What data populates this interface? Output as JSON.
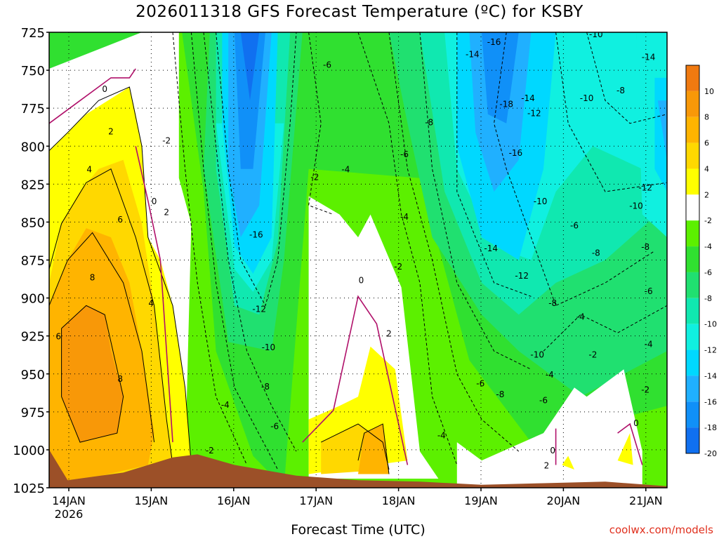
{
  "chart_data": {
    "type": "heatmap",
    "title": "2026011318 GFS Forecast Temperature (ºC) for KSBY",
    "xlabel": "Forecast Time (UTC)",
    "ylabel": "",
    "credit": "coolwx.com/models",
    "x_ticks": [
      "14JAN",
      "15JAN",
      "16JAN",
      "17JAN",
      "18JAN",
      "19JAN",
      "20JAN",
      "21JAN"
    ],
    "x_year_label": "2026",
    "y_ticks": [
      "725",
      "750",
      "775",
      "800",
      "825",
      "850",
      "875",
      "900",
      "925",
      "950",
      "975",
      "1000",
      "1025"
    ],
    "ylim": [
      725,
      1025
    ],
    "y_inverted": true,
    "colorbar": {
      "labels": [
        "10",
        "8",
        "6",
        "4",
        "2",
        "-2",
        "-4",
        "-6",
        "-8",
        "-10",
        "-12",
        "-14",
        "-16",
        "-18",
        "-20"
      ],
      "colors": [
        "#f07a10",
        "#f89808",
        "#ffb400",
        "#ffd800",
        "#ffff00",
        "#ffffff",
        "#5cf000",
        "#30e030",
        "#20e070",
        "#10e8b0",
        "#10f0e0",
        "#00d8ff",
        "#20b0ff",
        "#1090f8",
        "#1070f0"
      ],
      "ground_color": "#9c5028"
    },
    "contour_labels": [
      {
        "text": "0",
        "x": 0.09,
        "p": 762
      },
      {
        "text": "2",
        "x": 0.1,
        "p": 790
      },
      {
        "text": "4",
        "x": 0.065,
        "p": 815
      },
      {
        "text": "6",
        "x": 0.115,
        "p": 848
      },
      {
        "text": "8",
        "x": 0.07,
        "p": 886
      },
      {
        "text": "6",
        "x": 0.015,
        "p": 925
      },
      {
        "text": "8",
        "x": 0.115,
        "p": 953
      },
      {
        "text": "4",
        "x": 0.165,
        "p": 903
      },
      {
        "text": "0",
        "x": 0.17,
        "p": 836
      },
      {
        "text": "2",
        "x": 0.19,
        "p": 843
      },
      {
        "text": "-2",
        "x": 0.19,
        "p": 796
      },
      {
        "text": "-2",
        "x": 0.26,
        "p": 1000
      },
      {
        "text": "-4",
        "x": 0.285,
        "p": 970
      },
      {
        "text": "-6",
        "x": 0.365,
        "p": 984
      },
      {
        "text": "-8",
        "x": 0.35,
        "p": 958
      },
      {
        "text": "-10",
        "x": 0.355,
        "p": 932
      },
      {
        "text": "-12",
        "x": 0.34,
        "p": 907
      },
      {
        "text": "-16",
        "x": 0.335,
        "p": 858
      },
      {
        "text": "-6",
        "x": 0.45,
        "p": 746
      },
      {
        "text": "-2",
        "x": 0.43,
        "p": 820
      },
      {
        "text": "-4",
        "x": 0.48,
        "p": 815
      },
      {
        "text": "-6",
        "x": 0.575,
        "p": 805
      },
      {
        "text": "-8",
        "x": 0.615,
        "p": 784
      },
      {
        "text": "-4",
        "x": 0.575,
        "p": 846
      },
      {
        "text": "-2",
        "x": 0.565,
        "p": 879
      },
      {
        "text": "0",
        "x": 0.505,
        "p": 888
      },
      {
        "text": "2",
        "x": 0.55,
        "p": 923
      },
      {
        "text": "-4",
        "x": 0.635,
        "p": 990
      },
      {
        "text": "-6",
        "x": 0.698,
        "p": 956
      },
      {
        "text": "-8",
        "x": 0.73,
        "p": 963
      },
      {
        "text": "-16",
        "x": 0.72,
        "p": 731
      },
      {
        "text": "-14",
        "x": 0.685,
        "p": 739
      },
      {
        "text": "-18",
        "x": 0.74,
        "p": 772
      },
      {
        "text": "-14",
        "x": 0.775,
        "p": 768
      },
      {
        "text": "-12",
        "x": 0.785,
        "p": 778
      },
      {
        "text": "-16",
        "x": 0.755,
        "p": 804
      },
      {
        "text": "-10",
        "x": 0.795,
        "p": 836
      },
      {
        "text": "-14",
        "x": 0.715,
        "p": 867
      },
      {
        "text": "-12",
        "x": 0.765,
        "p": 885
      },
      {
        "text": "-8",
        "x": 0.815,
        "p": 903
      },
      {
        "text": "-6",
        "x": 0.85,
        "p": 852
      },
      {
        "text": "-8",
        "x": 0.885,
        "p": 870
      },
      {
        "text": "-10",
        "x": 0.87,
        "p": 768
      },
      {
        "text": "-10",
        "x": 0.885,
        "p": 726
      },
      {
        "text": "-8",
        "x": 0.925,
        "p": 763
      },
      {
        "text": "-14",
        "x": 0.97,
        "p": 741
      },
      {
        "text": "-12",
        "x": 0.965,
        "p": 827
      },
      {
        "text": "-10",
        "x": 0.95,
        "p": 839
      },
      {
        "text": "-8",
        "x": 0.965,
        "p": 866
      },
      {
        "text": "-6",
        "x": 0.97,
        "p": 895
      },
      {
        "text": "-4",
        "x": 0.86,
        "p": 912
      },
      {
        "text": "-4",
        "x": 0.97,
        "p": 930
      },
      {
        "text": "-2",
        "x": 0.88,
        "p": 937
      },
      {
        "text": "-2",
        "x": 0.965,
        "p": 960
      },
      {
        "text": "-10",
        "x": 0.79,
        "p": 937
      },
      {
        "text": "-4",
        "x": 0.81,
        "p": 950
      },
      {
        "text": "-6",
        "x": 0.8,
        "p": 967
      },
      {
        "text": "0",
        "x": 0.95,
        "p": 982
      },
      {
        "text": "0",
        "x": 0.815,
        "p": 1000
      },
      {
        "text": "2",
        "x": 0.805,
        "p": 1010
      }
    ]
  }
}
